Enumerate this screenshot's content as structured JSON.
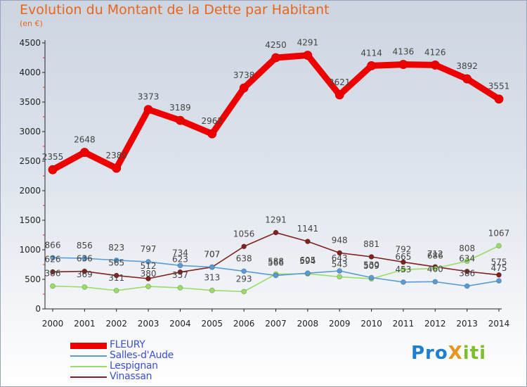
{
  "title": "Evolution du Montant de la Dette par Habitant",
  "unit_label": "(en €)",
  "logo": {
    "text": "ProXiti",
    "part1": "Pro",
    "part2": "X",
    "part3": "iti"
  },
  "chart_data": {
    "type": "line",
    "title": "Evolution du Montant de la Dette par Habitant",
    "ylabel": "(en €)",
    "xlabel": "",
    "ylim": [
      0,
      4500
    ],
    "yticks": [
      0,
      500,
      1000,
      1500,
      2000,
      2500,
      3000,
      3500,
      4000,
      4500
    ],
    "categories": [
      "2000",
      "2001",
      "2002",
      "2003",
      "2004",
      "2005",
      "2006",
      "2007",
      "2008",
      "2009",
      "2010",
      "2011",
      "2012",
      "2013",
      "2014"
    ],
    "grid": false,
    "legend_position": "bottom-left",
    "series": [
      {
        "name": "FLEURY",
        "color": "#ee0000",
        "values": [
          2355,
          2648,
          2380,
          3373,
          3189,
          2962,
          3738,
          4250,
          4291,
          3621,
          4114,
          4136,
          4126,
          3892,
          3551
        ]
      },
      {
        "name": "Salles-d'Aude",
        "color": "#5a9bd5",
        "values": [
          866,
          856,
          823,
          797,
          734,
          707,
          638,
          566,
          605,
          643,
          530,
          453,
          460,
          386,
          475
        ]
      },
      {
        "name": "Lespignan",
        "color": "#99dd66",
        "values": [
          386,
          369,
          311,
          380,
          357,
          313,
          293,
          588,
          594,
          543,
          509,
          665,
          686,
          808,
          1067
        ]
      },
      {
        "name": "Vinassan",
        "color": "#802020",
        "values": [
          626,
          636,
          565,
          512,
          623,
          707,
          1056,
          1291,
          1141,
          948,
          881,
          792,
          712,
          634,
          575
        ]
      }
    ]
  }
}
